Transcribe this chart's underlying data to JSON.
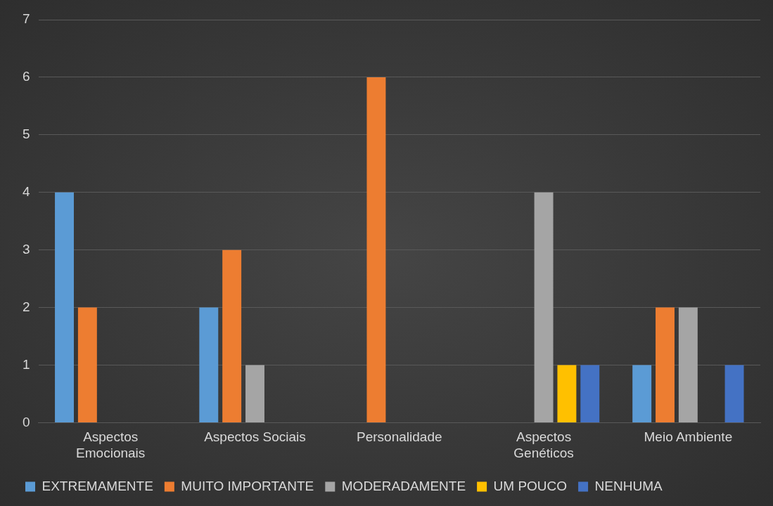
{
  "chart_data": {
    "type": "bar",
    "categories": [
      "Aspectos Emocionais",
      "Aspectos Sociais",
      "Personalidade",
      "Aspectos Genéticos",
      "Meio Ambiente"
    ],
    "series": [
      {
        "name": "EXTREMAMENTE",
        "color": "#5b9bd5",
        "values": [
          4,
          2,
          0,
          0,
          1
        ]
      },
      {
        "name": "MUITO IMPORTANTE",
        "color": "#ed7d31",
        "values": [
          2,
          3,
          6,
          0,
          2
        ]
      },
      {
        "name": "MODERADAMENTE",
        "color": "#a5a5a5",
        "values": [
          0,
          1,
          0,
          4,
          2
        ]
      },
      {
        "name": "UM POUCO",
        "color": "#ffc000",
        "values": [
          0,
          0,
          0,
          1,
          0
        ]
      },
      {
        "name": "NENHUMA",
        "color": "#4472c4",
        "values": [
          0,
          0,
          0,
          1,
          1
        ]
      }
    ],
    "ylim": [
      0,
      7
    ],
    "yticks": [
      0,
      1,
      2,
      3,
      4,
      5,
      6,
      7
    ],
    "grid": "y",
    "legend": "bottom"
  }
}
